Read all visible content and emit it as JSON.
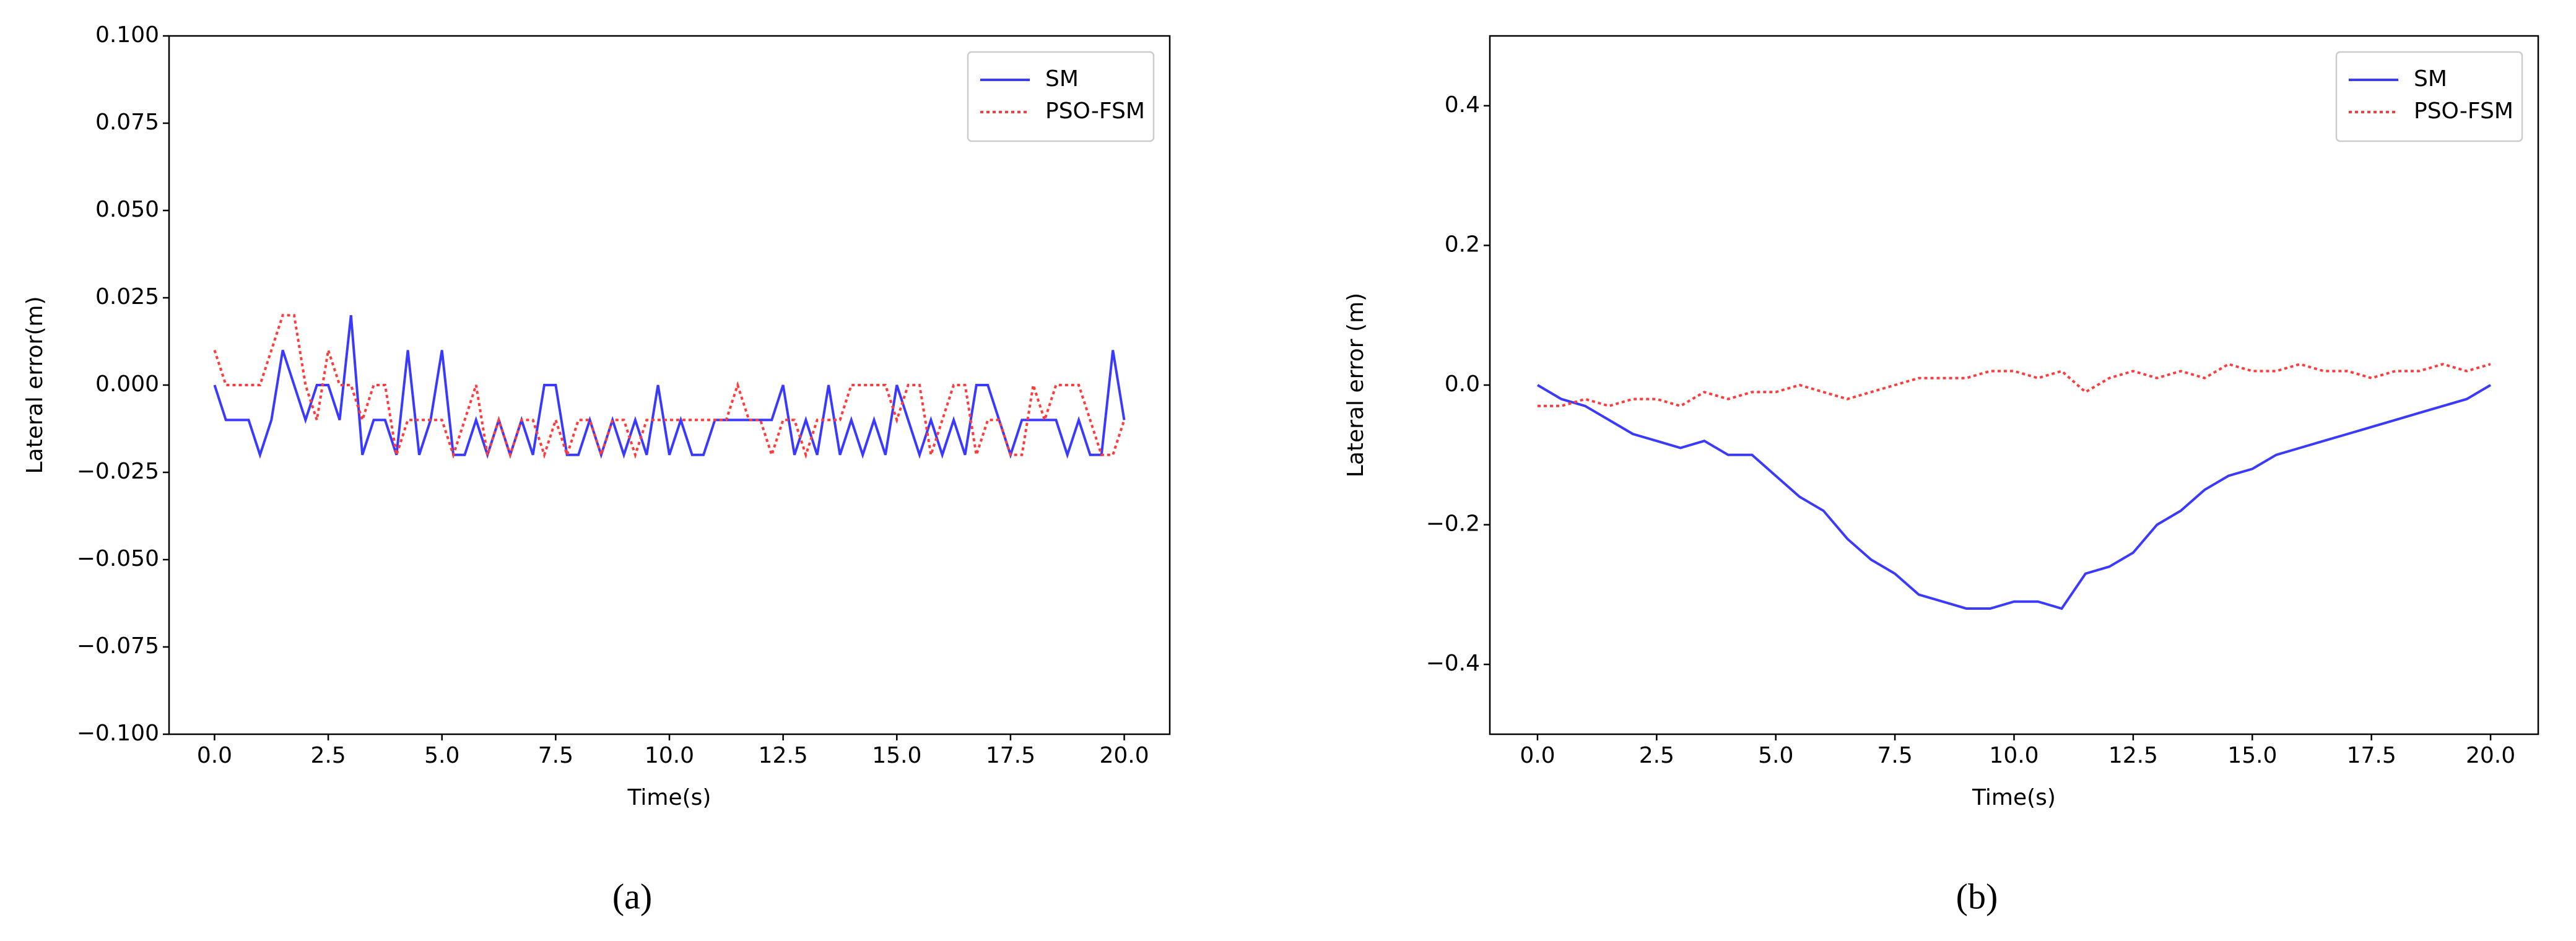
{
  "chart_data": [
    {
      "type": "line",
      "caption": "(a)",
      "xlabel": "Time(s)",
      "ylabel": "Lateral error(m)",
      "xlim": [
        -1,
        21
      ],
      "ylim": [
        -0.1,
        0.1
      ],
      "xticks": [
        {
          "value": 0,
          "label": "0.0"
        },
        2.5,
        {
          "value": 5,
          "label": "5.0"
        },
        7.5,
        {
          "value": 10,
          "label": "10.0"
        },
        12.5,
        {
          "value": 15,
          "label": "15.0"
        },
        17.5,
        {
          "value": 20,
          "label": "20.0"
        }
      ],
      "yticks": [
        {
          "value": -0.1,
          "label": "−0.100"
        },
        {
          "value": -0.075,
          "label": "−0.075"
        },
        {
          "value": -0.05,
          "label": "−0.050"
        },
        {
          "value": -0.025,
          "label": "−0.025"
        },
        {
          "value": 0,
          "label": "0.000"
        },
        0.025,
        {
          "value": 0.05,
          "label": "0.050"
        },
        0.075,
        {
          "value": 0.1,
          "label": "0.100"
        }
      ],
      "legend": "upper right",
      "x": [
        0,
        0.25,
        0.5,
        0.75,
        1,
        1.25,
        1.5,
        1.75,
        2,
        2.25,
        2.5,
        2.75,
        3,
        3.25,
        3.5,
        3.75,
        4,
        4.25,
        4.5,
        4.75,
        5,
        5.25,
        5.5,
        5.75,
        6,
        6.25,
        6.5,
        6.75,
        7,
        7.25,
        7.5,
        7.75,
        8,
        8.25,
        8.5,
        8.75,
        9,
        9.25,
        9.5,
        9.75,
        10,
        10.25,
        10.5,
        10.75,
        11,
        11.25,
        11.5,
        11.75,
        12,
        12.25,
        12.5,
        12.75,
        13,
        13.25,
        13.5,
        13.75,
        14,
        14.25,
        14.5,
        14.75,
        15,
        15.25,
        15.5,
        15.75,
        16,
        16.25,
        16.5,
        16.75,
        17,
        17.25,
        17.5,
        17.75,
        18,
        18.25,
        18.5,
        18.75,
        19,
        19.25,
        19.5,
        19.75,
        20
      ],
      "series": [
        {
          "name": "SM",
          "color": "#3a3aff",
          "style": "solid",
          "values": [
            0,
            -0.01,
            -0.01,
            -0.01,
            -0.02,
            -0.01,
            0.01,
            0,
            -0.01,
            0,
            0,
            -0.01,
            0.02,
            -0.02,
            -0.01,
            -0.01,
            -0.02,
            0.01,
            -0.02,
            -0.01,
            0.01,
            -0.02,
            -0.02,
            -0.01,
            -0.02,
            -0.01,
            -0.02,
            -0.01,
            -0.02,
            0,
            0,
            -0.02,
            -0.02,
            -0.01,
            -0.02,
            -0.01,
            -0.02,
            -0.01,
            -0.02,
            0,
            -0.02,
            -0.01,
            -0.02,
            -0.02,
            -0.01,
            -0.01,
            -0.01,
            -0.01,
            -0.01,
            -0.01,
            0,
            -0.02,
            -0.01,
            -0.02,
            0,
            -0.02,
            -0.01,
            -0.02,
            -0.01,
            -0.02,
            0,
            -0.01,
            -0.02,
            -0.01,
            -0.02,
            -0.01,
            -0.02,
            0,
            0,
            -0.01,
            -0.02,
            -0.01,
            -0.01,
            -0.01,
            -0.01,
            -0.02,
            -0.01,
            -0.02,
            -0.02,
            0.01,
            -0.01
          ]
        },
        {
          "name": "PSO-FSM",
          "color": "#ff3b3b",
          "style": "dotted",
          "values": [
            0.01,
            0,
            0,
            0,
            0,
            0.01,
            0.02,
            0.02,
            0,
            -0.01,
            0.01,
            0,
            0,
            -0.01,
            0,
            0,
            -0.02,
            -0.01,
            -0.01,
            -0.01,
            -0.01,
            -0.02,
            -0.01,
            0,
            -0.02,
            -0.01,
            -0.02,
            -0.01,
            -0.01,
            -0.02,
            -0.01,
            -0.02,
            -0.01,
            -0.01,
            -0.02,
            -0.01,
            -0.01,
            -0.02,
            -0.01,
            -0.01,
            -0.01,
            -0.01,
            -0.01,
            -0.01,
            -0.01,
            -0.01,
            0,
            -0.01,
            -0.01,
            -0.02,
            -0.01,
            -0.01,
            -0.02,
            -0.01,
            -0.01,
            -0.01,
            0,
            0,
            0,
            0,
            -0.01,
            0,
            0,
            -0.02,
            -0.01,
            0,
            0,
            -0.02,
            -0.01,
            -0.01,
            -0.02,
            -0.02,
            0,
            -0.01,
            0,
            0,
            0,
            -0.01,
            -0.02,
            -0.02,
            -0.01
          ]
        }
      ]
    },
    {
      "type": "line",
      "caption": "(b)",
      "xlabel": "Time(s)",
      "ylabel": "Lateral error (m)",
      "xlim": [
        -1,
        21
      ],
      "ylim": [
        -0.5,
        0.5
      ],
      "xticks": [
        {
          "value": 0,
          "label": "0.0"
        },
        2.5,
        {
          "value": 5,
          "label": "5.0"
        },
        7.5,
        {
          "value": 10,
          "label": "10.0"
        },
        12.5,
        {
          "value": 15,
          "label": "15.0"
        },
        17.5,
        {
          "value": 20,
          "label": "20.0"
        }
      ],
      "yticks": [
        {
          "value": -0.4,
          "label": "−0.4"
        },
        {
          "value": -0.2,
          "label": "−0.2"
        },
        {
          "value": 0,
          "label": "0.0"
        },
        0.2,
        0.4
      ],
      "legend": "upper right",
      "x": [
        0,
        0.5,
        1,
        1.5,
        2,
        2.5,
        3,
        3.5,
        4,
        4.5,
        5,
        5.5,
        6,
        6.5,
        7,
        7.5,
        8,
        8.5,
        9,
        9.5,
        10,
        10.5,
        11,
        11.5,
        12,
        12.5,
        13,
        13.5,
        14,
        14.5,
        15,
        15.5,
        16,
        16.5,
        17,
        17.5,
        18,
        18.5,
        19,
        19.5,
        20
      ],
      "series": [
        {
          "name": "SM",
          "color": "#3a3aff",
          "style": "solid",
          "values": [
            0,
            -0.02,
            -0.03,
            -0.05,
            -0.07,
            -0.08,
            -0.09,
            -0.08,
            -0.1,
            -0.1,
            -0.13,
            -0.16,
            -0.18,
            -0.22,
            -0.25,
            -0.27,
            -0.3,
            -0.31,
            -0.32,
            -0.32,
            -0.31,
            -0.31,
            -0.32,
            -0.27,
            -0.26,
            -0.24,
            -0.2,
            -0.18,
            -0.15,
            -0.13,
            -0.12,
            -0.1,
            -0.09,
            -0.08,
            -0.07,
            -0.06,
            -0.05,
            -0.04,
            -0.03,
            -0.02,
            0
          ]
        },
        {
          "name": "PSO-FSM",
          "color": "#ff3b3b",
          "style": "dotted",
          "values": [
            -0.03,
            -0.03,
            -0.02,
            -0.03,
            -0.02,
            -0.02,
            -0.03,
            -0.01,
            -0.02,
            -0.01,
            -0.01,
            0,
            -0.01,
            -0.02,
            -0.01,
            0,
            0.01,
            0.01,
            0.01,
            0.02,
            0.02,
            0.01,
            0.02,
            -0.01,
            0.01,
            0.02,
            0.01,
            0.02,
            0.01,
            0.03,
            0.02,
            0.02,
            0.03,
            0.02,
            0.02,
            0.01,
            0.02,
            0.02,
            0.03,
            0.02,
            0.03
          ]
        }
      ]
    }
  ]
}
